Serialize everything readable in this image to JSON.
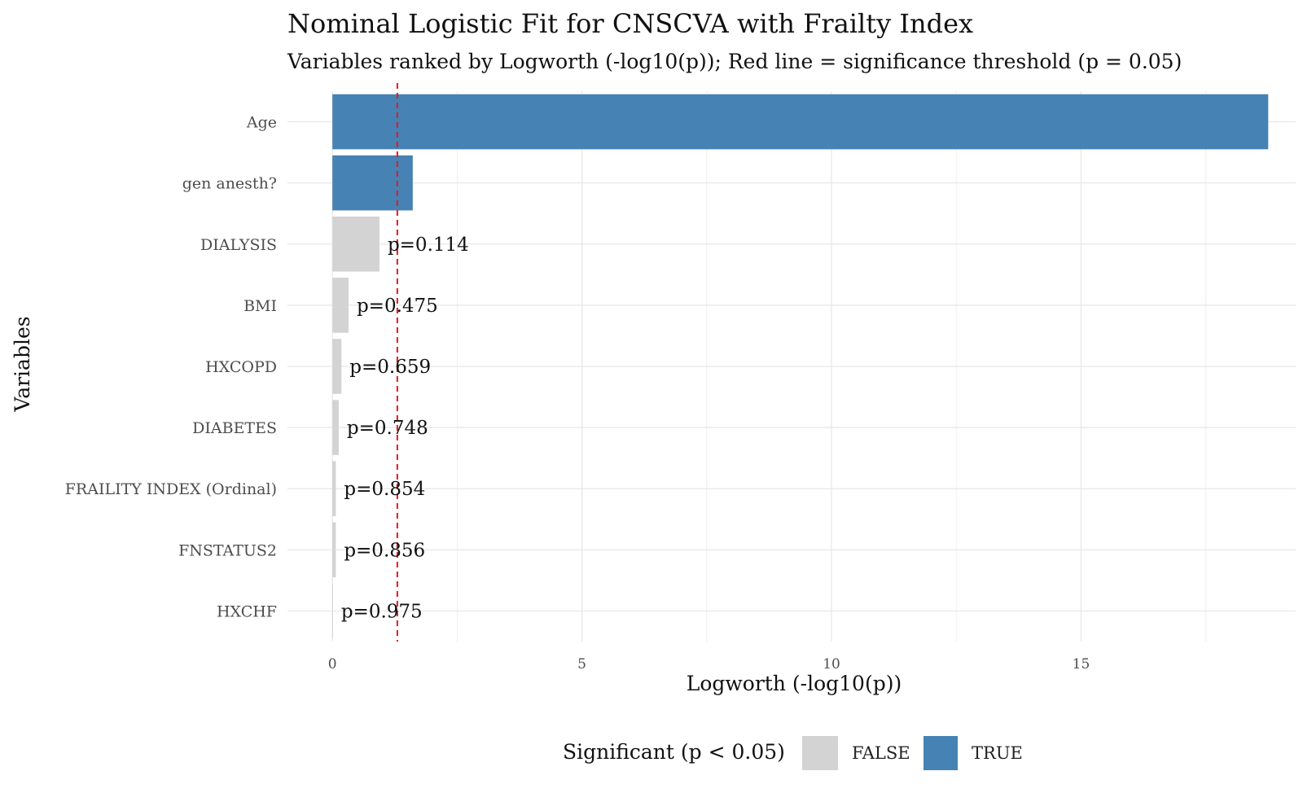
{
  "chart_data": {
    "type": "bar",
    "orientation": "horizontal",
    "title": "Nominal Logistic Fit for CNSCVA with Frailty Index",
    "subtitle": "Variables ranked by Logworth (-log10(p)); Red line = significance threshold (p = 0.05)",
    "xlabel": "Logworth (-log10(p))",
    "ylabel": "Variables",
    "xlim": [
      -0.9,
      19.3
    ],
    "xticks": [
      0,
      5,
      10,
      15
    ],
    "xtick_labels": [
      "0",
      "5",
      "10",
      "15"
    ],
    "threshold": 1.301,
    "categories": [
      "Age",
      "gen anesth?",
      "DIALYSIS",
      "BMI",
      "HXCOPD",
      "DIABETES",
      "FRAILITY INDEX (Ordinal)",
      "FNSTATUS2",
      "HXCHF"
    ],
    "values": [
      18.75,
      1.61,
      0.943,
      0.323,
      0.181,
      0.126,
      0.069,
      0.068,
      0.011
    ],
    "significant": [
      true,
      true,
      false,
      false,
      false,
      false,
      false,
      false,
      false
    ],
    "value_labels": [
      "",
      "",
      "p=0.114",
      "p=0.475",
      "p=0.659",
      "p=0.748",
      "p=0.854",
      "p=0.856",
      "p=0.975"
    ],
    "legend": {
      "title": "Significant (p < 0.05)",
      "position": "bottom",
      "items": [
        {
          "label": "FALSE",
          "color": "#d3d3d3"
        },
        {
          "label": "TRUE",
          "color": "#4682b4"
        }
      ]
    },
    "colors": {
      "significant": "#4682b4",
      "not_significant": "#d3d3d3",
      "threshold_line": "#e41a1c"
    },
    "grid": true
  }
}
